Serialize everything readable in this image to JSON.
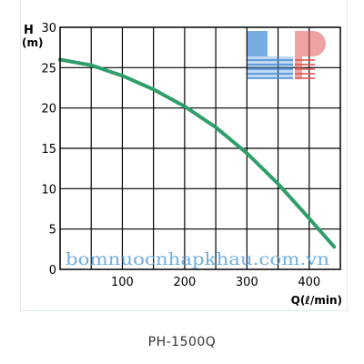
{
  "chart_data": {
    "type": "line",
    "xlabel": "Q(ℓ/min)",
    "ylabel_top": "H",
    "ylabel_unit": "(m)",
    "xlim": [
      0,
      450
    ],
    "ylim": [
      0,
      30
    ],
    "x_ticks": [
      100,
      200,
      300,
      400
    ],
    "y_ticks": [
      0,
      5,
      10,
      15,
      20,
      25,
      30
    ],
    "x_tick_labels": [
      "100",
      "200",
      "300",
      "400"
    ],
    "y_tick_labels": [
      "0",
      "5",
      "10",
      "15",
      "20",
      "25",
      "30"
    ],
    "grid": true,
    "series": [
      {
        "x": [
          0,
          50,
          100,
          150,
          200,
          250,
          300,
          350,
          400,
          440
        ],
        "y": [
          26,
          25.3,
          24,
          22.3,
          20.2,
          17.6,
          14.4,
          10.6,
          6.3,
          2.8
        ],
        "color": "#2e9e6a"
      }
    ]
  },
  "watermark": {
    "text": "bomnuocnhapkhau.com.vn",
    "logo_letters": "LP",
    "color": "#5aa0dc",
    "logo_color_left": "#4a90d9",
    "logo_color_right": "#e05555"
  },
  "caption": "PH-1500Q"
}
